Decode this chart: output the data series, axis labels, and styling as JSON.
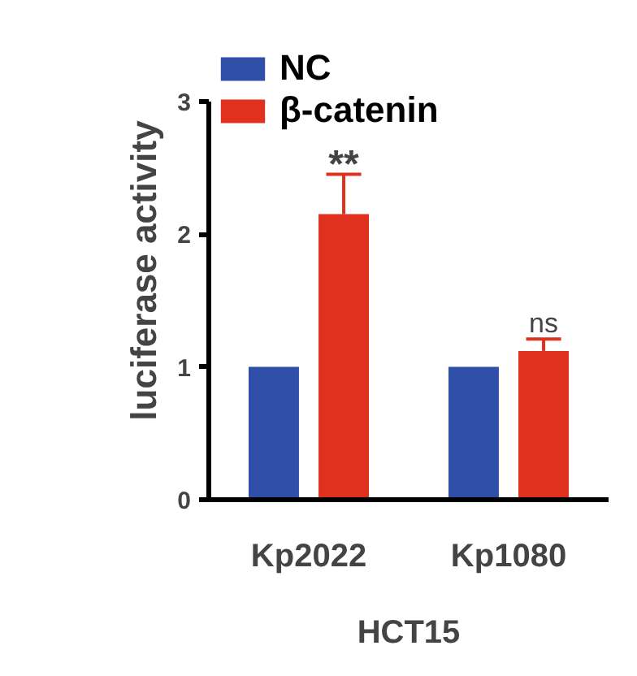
{
  "chart_data": {
    "type": "bar",
    "ylabel": "luciferase activity",
    "xlabel": "HCT15",
    "categories": [
      "Kp2022",
      "Kp1080"
    ],
    "series": [
      {
        "name": "NC",
        "color": "#2f4fa8",
        "values": [
          1,
          1
        ]
      },
      {
        "name": "β-catenin",
        "color": "#e0301e",
        "values": [
          2.15,
          1.12
        ],
        "errors": [
          [
            2.15,
            2.45
          ],
          [
            1.12,
            1.21
          ]
        ]
      }
    ],
    "ylim": [
      0,
      3
    ],
    "yticks": [
      0,
      1,
      2,
      3
    ],
    "grid": false,
    "legend": "top left",
    "annotations": [
      "**",
      "ns"
    ]
  }
}
